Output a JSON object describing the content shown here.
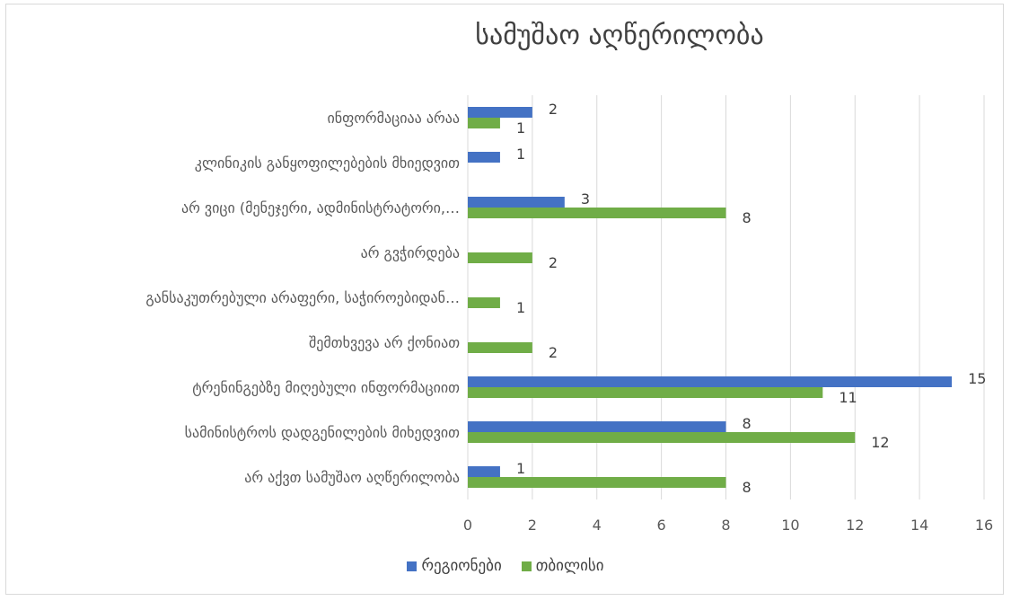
{
  "chart_data": {
    "type": "bar",
    "orientation": "horizontal",
    "title": "სამუშაო აღწერილობა",
    "categories": [
      "ინფორმაციაა არაა",
      "კლინიკის განყოფილებების მხიედვით",
      "არ ვიცი (მენეჯერი, ადმინისტრატორი,…",
      "არ გვჭირდება",
      "განსაკუთრებული არაფერი, საჭიროებიდან…",
      "შემთხვევა არ ქონიათ",
      "ტრენინგებზე მიღებული ინფორმაციით",
      "სამინისტროს დადგენილების მიხედვით",
      "არ აქვთ სამუშაო აღწერილობა"
    ],
    "series": [
      {
        "name": "რეგიონები",
        "color": "#4472c4",
        "values": [
          2,
          1,
          3,
          null,
          null,
          null,
          15,
          8,
          1
        ]
      },
      {
        "name": "თბილისი",
        "color": "#70ad47",
        "values": [
          1,
          null,
          8,
          2,
          1,
          2,
          11,
          12,
          8
        ]
      }
    ],
    "xlim": [
      0,
      16
    ],
    "xticks": [
      0,
      2,
      4,
      6,
      8,
      10,
      12,
      14,
      16
    ],
    "grid": true,
    "legend": "bottom"
  }
}
